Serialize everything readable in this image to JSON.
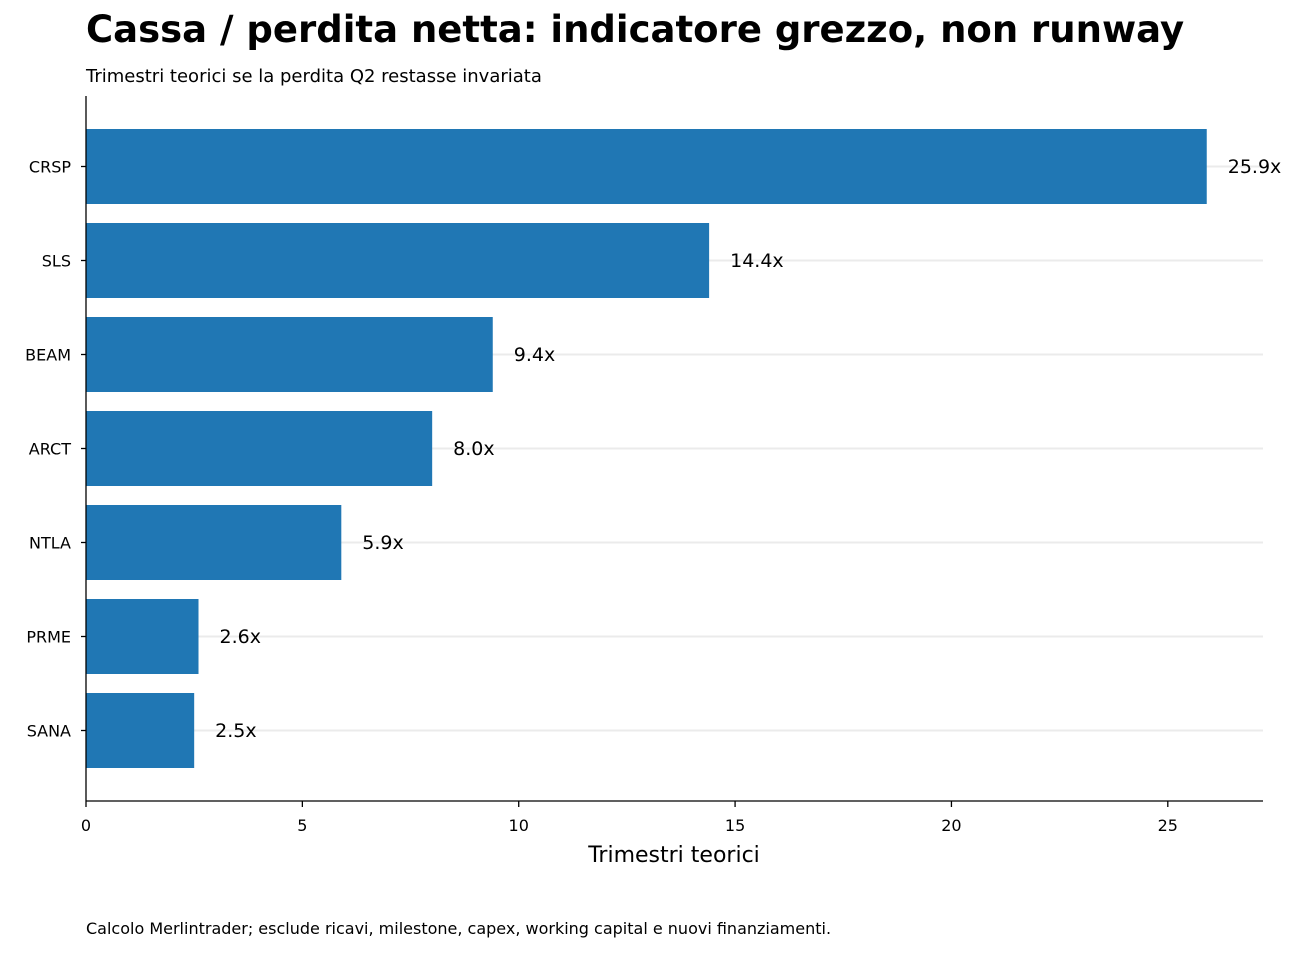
{
  "chart_data": {
    "type": "bar",
    "orientation": "horizontal",
    "title": "Cassa / perdita netta: indicatore grezzo, non runway",
    "subtitle": "Trimestri teorici se la perdita Q2 restasse invariata",
    "xlabel": "Trimestri teorici",
    "ylabel": "",
    "categories": [
      "CRSP",
      "SLS",
      "BEAM",
      "ARCT",
      "NTLA",
      "PRME",
      "SANA"
    ],
    "values": [
      25.9,
      14.4,
      9.4,
      8.0,
      5.9,
      2.6,
      2.5
    ],
    "value_labels": [
      "25.9x",
      "14.4x",
      "9.4x",
      "8.0x",
      "5.9x",
      "2.6x",
      "2.5x"
    ],
    "xlim": [
      0,
      27.2
    ],
    "xticks": [
      0,
      5,
      10,
      15,
      20,
      25
    ],
    "grid": "horizontal",
    "bar_color": "#2077b4",
    "grid_color": "#ebebeb",
    "footnote": "Calcolo Merlintrader; esclude ricavi, milestone, capex, working capital e nuovi finanziamenti."
  }
}
